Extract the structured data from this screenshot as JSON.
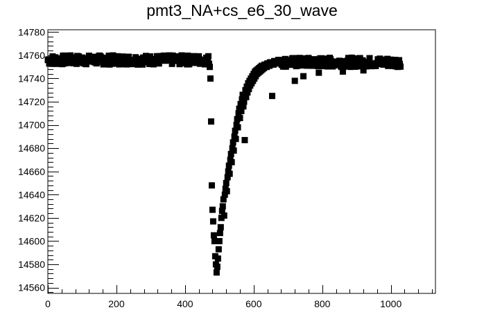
{
  "chart_data": {
    "type": "scatter",
    "title": "pmt3_NA+cs_e6_30_wave",
    "xlabel": "",
    "ylabel": "",
    "xlim": [
      0,
      1130
    ],
    "ylim": [
      14555,
      14782
    ],
    "grid": false,
    "legend": "none",
    "marker_color": "#000000",
    "x_ticks": [
      0,
      200,
      400,
      600,
      800,
      1000
    ],
    "y_ticks": [
      14560,
      14580,
      14600,
      14620,
      14640,
      14660,
      14680,
      14700,
      14720,
      14740,
      14760,
      14780
    ],
    "baseline_segments": [
      {
        "x_start": 0,
        "x_end": 470,
        "y_center": 14756,
        "spread": 4
      },
      {
        "x_start": 680,
        "x_end": 1028,
        "y_center": 14754,
        "spread": 4
      }
    ],
    "points": [
      [
        472,
        14750
      ],
      [
        474,
        14740
      ],
      [
        476,
        14703
      ],
      [
        478,
        14648
      ],
      [
        480,
        14627
      ],
      [
        482,
        14617
      ],
      [
        484,
        14605
      ],
      [
        486,
        14600
      ],
      [
        488,
        14587
      ],
      [
        490,
        14580
      ],
      [
        492,
        14573
      ],
      [
        494,
        14578
      ],
      [
        496,
        14585
      ],
      [
        498,
        14593
      ],
      [
        500,
        14600
      ],
      [
        502,
        14607
      ],
      [
        504,
        14612
      ],
      [
        506,
        14620
      ],
      [
        508,
        14626
      ],
      [
        510,
        14630
      ],
      [
        512,
        14636
      ],
      [
        514,
        14622
      ],
      [
        516,
        14640
      ],
      [
        518,
        14645
      ],
      [
        520,
        14650
      ],
      [
        522,
        14643
      ],
      [
        524,
        14655
      ],
      [
        526,
        14660
      ],
      [
        528,
        14665
      ],
      [
        530,
        14658
      ],
      [
        532,
        14670
      ],
      [
        534,
        14675
      ],
      [
        536,
        14668
      ],
      [
        538,
        14680
      ],
      [
        540,
        14685
      ],
      [
        542,
        14678
      ],
      [
        544,
        14690
      ],
      [
        546,
        14695
      ],
      [
        548,
        14688
      ],
      [
        550,
        14700
      ],
      [
        552,
        14705
      ],
      [
        554,
        14698
      ],
      [
        556,
        14710
      ],
      [
        558,
        14714
      ],
      [
        560,
        14706
      ],
      [
        562,
        14718
      ],
      [
        564,
        14712
      ],
      [
        566,
        14722
      ],
      [
        568,
        14726
      ],
      [
        570,
        14716
      ],
      [
        572,
        14720
      ],
      [
        574,
        14687
      ],
      [
        576,
        14730
      ],
      [
        578,
        14724
      ],
      [
        580,
        14733
      ],
      [
        582,
        14728
      ],
      [
        584,
        14736
      ],
      [
        586,
        14731
      ],
      [
        588,
        14738
      ],
      [
        590,
        14734
      ],
      [
        592,
        14740
      ],
      [
        594,
        14736
      ],
      [
        596,
        14742
      ],
      [
        598,
        14738
      ],
      [
        600,
        14744
      ],
      [
        602,
        14740
      ],
      [
        604,
        14746
      ],
      [
        606,
        14742
      ],
      [
        608,
        14747
      ],
      [
        610,
        14744
      ],
      [
        612,
        14748
      ],
      [
        614,
        14745
      ],
      [
        616,
        14749
      ],
      [
        618,
        14746
      ],
      [
        620,
        14750
      ],
      [
        622,
        14747
      ],
      [
        624,
        14751
      ],
      [
        626,
        14748
      ],
      [
        628,
        14751
      ],
      [
        630,
        14749
      ],
      [
        632,
        14752
      ],
      [
        634,
        14750
      ],
      [
        636,
        14752
      ],
      [
        638,
        14750
      ],
      [
        640,
        14753
      ],
      [
        642,
        14751
      ],
      [
        644,
        14753
      ],
      [
        646,
        14751
      ],
      [
        648,
        14754
      ],
      [
        650,
        14752
      ],
      [
        652,
        14754
      ],
      [
        654,
        14725
      ],
      [
        656,
        14754
      ],
      [
        658,
        14752
      ],
      [
        660,
        14755
      ],
      [
        662,
        14753
      ],
      [
        664,
        14755
      ],
      [
        666,
        14753
      ],
      [
        668,
        14755
      ],
      [
        670,
        14753
      ],
      [
        672,
        14756
      ],
      [
        674,
        14754
      ],
      [
        676,
        14756
      ],
      [
        678,
        14754
      ],
      [
        720,
        14738
      ],
      [
        745,
        14742
      ],
      [
        790,
        14745
      ],
      [
        860,
        14746
      ],
      [
        920,
        14747
      ]
    ]
  }
}
